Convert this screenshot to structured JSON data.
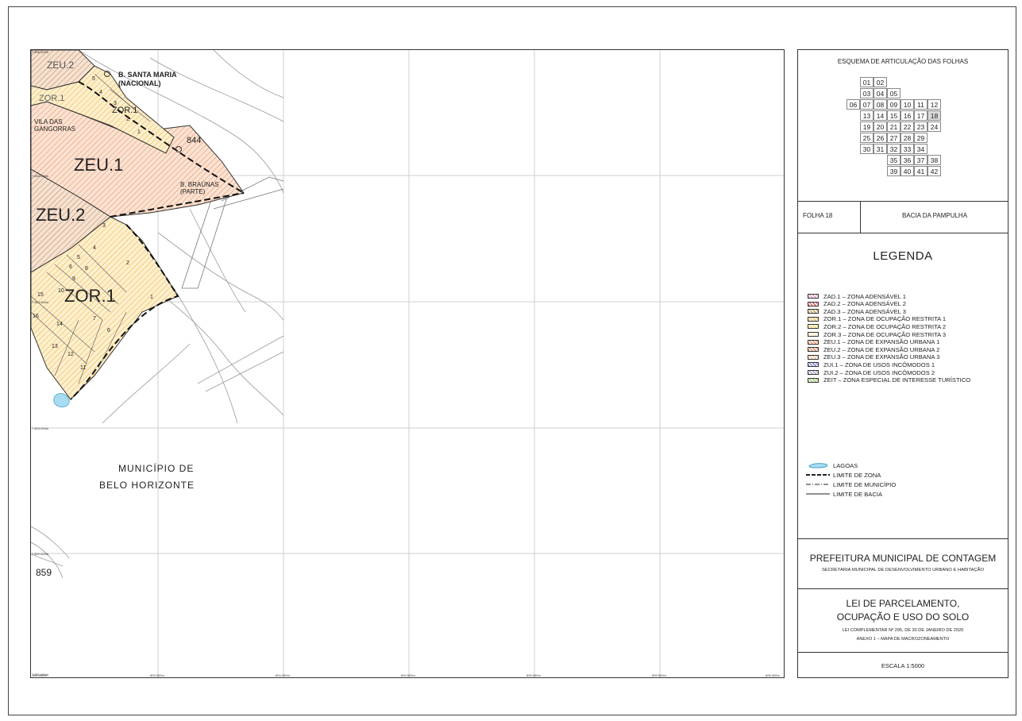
{
  "map": {
    "coords_left": [
      "7.806.000m",
      "7.805.000m",
      "7.804.000m",
      "7.803.000m",
      "7.802.000m",
      "7.801.000m"
    ],
    "coords_bottom": [
      "602.000m",
      "603.000m",
      "604.000m",
      "604.500m",
      "605.000m",
      "605.500m",
      "606.000m"
    ],
    "labels": {
      "zeu2_top": "ZEU.2",
      "santa_maria": "B. SANTA MARIA",
      "nacional": "(NACIONAL)",
      "zor1_a": "ZOR.1",
      "zor1_b": "ZOR.1",
      "vila_das": "VILA DAS",
      "gangorras": "GANGORRAS",
      "n844": "844",
      "zeu1": "ZEU.1",
      "braunas": "B. BRAÚNAS",
      "parte": "(PARTE)",
      "zeu2_mid": "ZEU.2",
      "zor1_big": "ZOR.1",
      "municipio1": "MUNICÍPIO DE",
      "municipio2": "BELO HORIZONTE",
      "n859": "859"
    },
    "lot_numbers": [
      "5",
      "4",
      "3",
      "2",
      "1",
      "3",
      "4",
      "2",
      "5",
      "6",
      "8",
      "9",
      "10",
      "15",
      "16",
      "14",
      "13",
      "12",
      "11",
      "7",
      "6",
      "1"
    ]
  },
  "panel": {
    "index_title": "ESQUEMA DE ARTICULAÇÃO DAS FOLHAS",
    "index_rows": [
      [
        "01",
        "02"
      ],
      [
        "03",
        "04",
        "05"
      ],
      [
        "06",
        "07",
        "08",
        "09",
        "10",
        "11",
        "12"
      ],
      [
        "13",
        "14",
        "15",
        "16",
        "17",
        "18"
      ],
      [
        "19",
        "20",
        "21",
        "22",
        "23",
        "24"
      ],
      [
        "25",
        "26",
        "27",
        "28",
        "29"
      ],
      [
        "30",
        "31",
        "32",
        "33",
        "34"
      ],
      [
        "35",
        "36",
        "37",
        "38"
      ],
      [
        "39",
        "40",
        "41",
        "42"
      ]
    ],
    "selected_sheet": "18",
    "folha": "FOLHA 18",
    "bacia": "BACIA DA PAMPULHA",
    "legend_title": "LEGENDA",
    "zones": [
      {
        "label": "ZAD.1  –  ZONA  ADENSÁVEL  1",
        "color": "#e7a1c8"
      },
      {
        "label": "ZAD.2  –  ZONA  ADENSÁVEL  2",
        "color": "#e36b6b"
      },
      {
        "label": "ZAD.3  –  ZONA  ADENSÁVEL  3",
        "color": "#c8a86a"
      },
      {
        "label": "ZOR.1  –  ZONA  DE  OCUPAÇÃO  RESTRITA  1",
        "color": "#f4c56b"
      },
      {
        "label": "ZOR.2  –  ZONA  DE  OCUPAÇÃO  RESTRITA  2",
        "color": "#f7df7a"
      },
      {
        "label": "ZOR.3  –  ZONA  DE  OCUPAÇÃO  RESTRITA  3",
        "color": "#fbf1c3"
      },
      {
        "label": "ZEU.1  –  ZONA  DE  EXPANSÃO  URBANA  1",
        "color": "#f0a27a"
      },
      {
        "label": "ZEU.2  –  ZONA  DE  EXPANSÃO  URBANA  2",
        "color": "#d9956c"
      },
      {
        "label": "ZEU.3  –  ZONA  DE  EXPANSÃO  URBANA  3",
        "color": "#f4c9a8"
      },
      {
        "label": "ZUI.1    –  ZONA  DE  USOS  INCÔMODOS  1",
        "color": "#8b8fd6"
      },
      {
        "label": "ZUI.2  –  ZONA  DE  USOS  INCÔMODOS  2",
        "color": "#b7a8d6"
      },
      {
        "label": "ZEIT     –  ZONA  ESPECIAL  DE  INTERESSE  TURÍSTICO",
        "color": "#9ccf7a"
      }
    ],
    "lines": [
      {
        "label": "LAGOAS",
        "type": "lake"
      },
      {
        "label": "LIMITE  DE  ZONA",
        "type": "dash"
      },
      {
        "label": "LIMITE  DE  MUNICÍPIO",
        "type": "dashdot"
      },
      {
        "label": "LIMITE  DE  BACIA",
        "type": "solid"
      }
    ],
    "prefeitura": "PREFEITURA MUNICIPAL DE CONTAGEM",
    "secretaria": "SECRETARIA MUNICIPAL DE DESENVOLVIMENTO URBANO E HABITAÇÃO",
    "lei1": "LEI DE PARCELAMENTO,",
    "lei2": "OCUPAÇÃO E USO DO SOLO",
    "lei3": "LEI COMPLEMENTAR Nº 295, DE 30 DE JANEIRO DE 2020",
    "lei4": "ANEXO 1 – MAPA DE MACROZONEAMENTO",
    "escala": "ESCALA    1:5000"
  }
}
